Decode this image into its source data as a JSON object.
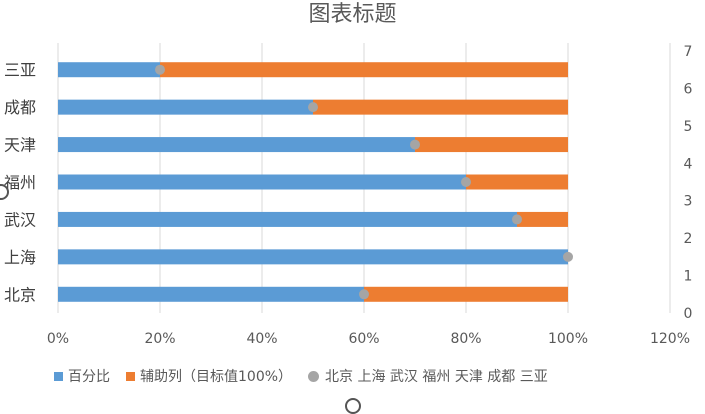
{
  "chart_data": {
    "type": "bar",
    "orientation": "horizontal",
    "stacked": true,
    "title": "图表标题",
    "categories": [
      "北京",
      "上海",
      "武汉",
      "福州",
      "天津",
      "成都",
      "三亚"
    ],
    "series": [
      {
        "name": "百分比",
        "values": [
          0.6,
          1.0,
          0.9,
          0.8,
          0.7,
          0.5,
          0.2
        ],
        "color": "#5B9BD5"
      },
      {
        "name": "辅助列（目标值100%）",
        "values": [
          0.4,
          0.0,
          0.1,
          0.2,
          0.3,
          0.5,
          0.8
        ],
        "color": "#ED7D31"
      }
    ],
    "scatter_series": {
      "name": "北京 上海 武汉 福州 天津 成都 三亚",
      "x": [
        0.6,
        1.0,
        0.9,
        0.8,
        0.7,
        0.5,
        0.2
      ],
      "y": [
        0.5,
        1.5,
        2.5,
        3.5,
        4.5,
        5.5,
        6.5
      ],
      "color": "#A5A5A5"
    },
    "x_axis": {
      "ticks": [
        "0%",
        "20%",
        "40%",
        "60%",
        "80%",
        "100%",
        "120%"
      ],
      "min": 0,
      "max": 1.2
    },
    "secondary_y_axis": {
      "ticks": [
        "0",
        "1",
        "2",
        "3",
        "4",
        "5",
        "6",
        "7"
      ],
      "min": 0,
      "max": 7
    },
    "grid": "vertical",
    "legend_position": "bottom"
  },
  "legend": {
    "item1": "百分比",
    "item2": "辅助列（目标值100%）",
    "item3": "北京 上海 武汉 福州 天津 成都 三亚"
  },
  "colors": {
    "blue": "#5B9BD5",
    "orange": "#ED7D31",
    "gray": "#A5A5A5",
    "grid": "#D9D9D9"
  }
}
